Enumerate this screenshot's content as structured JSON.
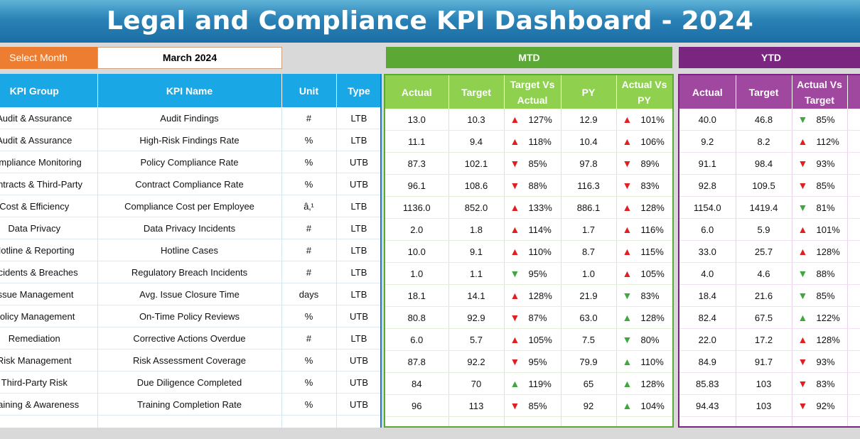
{
  "title": "Legal and Compliance KPI Dashboard - 2024",
  "month_selector": {
    "label": "Select Month",
    "value": "March 2024"
  },
  "mtd_label": "MTD",
  "ytd_label": "YTD",
  "colors": {
    "title": "#2a82b6",
    "select": "#ed7d31",
    "mtd": "#5ba834",
    "ytd": "#7a2580",
    "info": "#1aa7e6",
    "bad": "#e02020",
    "good": "#3da83d"
  },
  "left_headers": [
    "KPI Group",
    "KPI Name",
    "Unit",
    "Type"
  ],
  "mtd_headers": [
    "Actual",
    "Target",
    "Target Vs Actual",
    "PY",
    "Actual Vs PY"
  ],
  "ytd_headers": [
    "Actual",
    "Target",
    "Actual Vs Target"
  ],
  "rows": [
    {
      "group": "Audit & Assurance",
      "name": "Audit Findings",
      "unit": "#",
      "type": "LTB",
      "mtd_actual": "13.0",
      "mtd_target": "10.3",
      "tva_dir": "up",
      "tva": "127%",
      "py": "12.9",
      "avp_dir": "up",
      "avp": "101%",
      "ytd_actual": "40.0",
      "ytd_target": "46.8",
      "yva_dir": "g-down",
      "yva": "85%"
    },
    {
      "group": "Audit & Assurance",
      "name": "High-Risk Findings Rate",
      "unit": "%",
      "type": "LTB",
      "mtd_actual": "11.1",
      "mtd_target": "9.4",
      "tva_dir": "up",
      "tva": "118%",
      "py": "10.4",
      "avp_dir": "up",
      "avp": "106%",
      "ytd_actual": "9.2",
      "ytd_target": "8.2",
      "yva_dir": "up",
      "yva": "112%"
    },
    {
      "group": "Compliance Monitoring",
      "name": "Policy Compliance Rate",
      "unit": "%",
      "type": "UTB",
      "mtd_actual": "87.3",
      "mtd_target": "102.1",
      "tva_dir": "down",
      "tva": "85%",
      "py": "97.8",
      "avp_dir": "down",
      "avp": "89%",
      "ytd_actual": "91.1",
      "ytd_target": "98.4",
      "yva_dir": "down",
      "yva": "93%"
    },
    {
      "group": "Contracts & Third-Party",
      "name": "Contract Compliance Rate",
      "unit": "%",
      "type": "UTB",
      "mtd_actual": "96.1",
      "mtd_target": "108.6",
      "tva_dir": "down",
      "tva": "88%",
      "py": "116.3",
      "avp_dir": "down",
      "avp": "83%",
      "ytd_actual": "92.8",
      "ytd_target": "109.5",
      "yva_dir": "down",
      "yva": "85%"
    },
    {
      "group": "Cost & Efficiency",
      "name": "Compliance Cost per Employee",
      "unit": "â‚¹",
      "type": "LTB",
      "mtd_actual": "1136.0",
      "mtd_target": "852.0",
      "tva_dir": "up",
      "tva": "133%",
      "py": "886.1",
      "avp_dir": "up",
      "avp": "128%",
      "ytd_actual": "1154.0",
      "ytd_target": "1419.4",
      "yva_dir": "g-down",
      "yva": "81%"
    },
    {
      "group": "Data Privacy",
      "name": "Data Privacy Incidents",
      "unit": "#",
      "type": "LTB",
      "mtd_actual": "2.0",
      "mtd_target": "1.8",
      "tva_dir": "up",
      "tva": "114%",
      "py": "1.7",
      "avp_dir": "up",
      "avp": "116%",
      "ytd_actual": "6.0",
      "ytd_target": "5.9",
      "yva_dir": "up",
      "yva": "101%"
    },
    {
      "group": "Hotline & Reporting",
      "name": "Hotline Cases",
      "unit": "#",
      "type": "LTB",
      "mtd_actual": "10.0",
      "mtd_target": "9.1",
      "tva_dir": "up",
      "tva": "110%",
      "py": "8.7",
      "avp_dir": "up",
      "avp": "115%",
      "ytd_actual": "33.0",
      "ytd_target": "25.7",
      "yva_dir": "up",
      "yva": "128%"
    },
    {
      "group": "Incidents & Breaches",
      "name": "Regulatory Breach Incidents",
      "unit": "#",
      "type": "LTB",
      "mtd_actual": "1.0",
      "mtd_target": "1.1",
      "tva_dir": "g-down",
      "tva": "95%",
      "py": "1.0",
      "avp_dir": "up",
      "avp": "105%",
      "ytd_actual": "4.0",
      "ytd_target": "4.6",
      "yva_dir": "g-down",
      "yva": "88%"
    },
    {
      "group": "Issue Management",
      "name": "Avg. Issue Closure Time",
      "unit": "days",
      "type": "LTB",
      "mtd_actual": "18.1",
      "mtd_target": "14.1",
      "tva_dir": "up",
      "tva": "128%",
      "py": "21.9",
      "avp_dir": "g-down",
      "avp": "83%",
      "ytd_actual": "18.4",
      "ytd_target": "21.6",
      "yva_dir": "g-down",
      "yva": "85%"
    },
    {
      "group": "Policy Management",
      "name": "On-Time Policy Reviews",
      "unit": "%",
      "type": "UTB",
      "mtd_actual": "80.8",
      "mtd_target": "92.9",
      "tva_dir": "down",
      "tva": "87%",
      "py": "63.0",
      "avp_dir": "g-up",
      "avp": "128%",
      "ytd_actual": "82.4",
      "ytd_target": "67.5",
      "yva_dir": "g-up",
      "yva": "122%"
    },
    {
      "group": "Remediation",
      "name": "Corrective Actions Overdue",
      "unit": "#",
      "type": "LTB",
      "mtd_actual": "6.0",
      "mtd_target": "5.7",
      "tva_dir": "up",
      "tva": "105%",
      "py": "7.5",
      "avp_dir": "g-down",
      "avp": "80%",
      "ytd_actual": "22.0",
      "ytd_target": "17.2",
      "yva_dir": "up",
      "yva": "128%"
    },
    {
      "group": "Risk Management",
      "name": "Risk Assessment Coverage",
      "unit": "%",
      "type": "UTB",
      "mtd_actual": "87.8",
      "mtd_target": "92.2",
      "tva_dir": "down",
      "tva": "95%",
      "py": "79.9",
      "avp_dir": "g-up",
      "avp": "110%",
      "ytd_actual": "84.9",
      "ytd_target": "91.7",
      "yva_dir": "down",
      "yva": "93%"
    },
    {
      "group": "Third-Party Risk",
      "name": "Due Diligence Completed",
      "unit": "%",
      "type": "UTB",
      "mtd_actual": "84",
      "mtd_target": "70",
      "tva_dir": "g-up",
      "tva": "119%",
      "py": "65",
      "avp_dir": "g-up",
      "avp": "128%",
      "ytd_actual": "85.83",
      "ytd_target": "103",
      "yva_dir": "down",
      "yva": "83%"
    },
    {
      "group": "Training & Awareness",
      "name": "Training Completion Rate",
      "unit": "%",
      "type": "UTB",
      "mtd_actual": "96",
      "mtd_target": "113",
      "tva_dir": "down",
      "tva": "85%",
      "py": "92",
      "avp_dir": "g-up",
      "avp": "104%",
      "ytd_actual": "94.43",
      "ytd_target": "103",
      "yva_dir": "down",
      "yva": "92%"
    }
  ]
}
